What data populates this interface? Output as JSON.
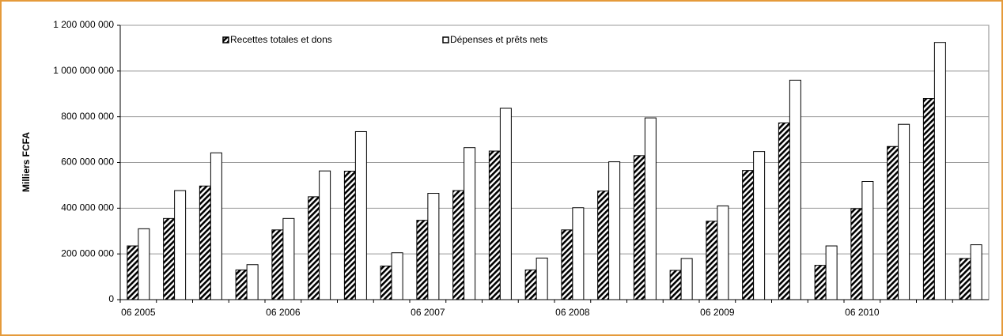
{
  "chart_data": {
    "type": "bar",
    "y_label": "Milliers FCFA",
    "categories": [
      "06 2005",
      null,
      null,
      null,
      "06 2006",
      null,
      null,
      null,
      "06 2007",
      null,
      null,
      null,
      "06 2008",
      null,
      null,
      null,
      "06 2009",
      null,
      null,
      null,
      "06 2010",
      null,
      null,
      null
    ],
    "series": [
      {
        "name": "Recettes totales et dons",
        "color": "#000000",
        "pattern": "hatch",
        "values": [
          235000000,
          355000000,
          497000000,
          130000000,
          305000000,
          450000000,
          562000000,
          147000000,
          347000000,
          477000000,
          650000000,
          130000000,
          305000000,
          475000000,
          630000000,
          128000000,
          343000000,
          565000000,
          773000000,
          150000000,
          398000000,
          670000000,
          880000000,
          180000000
        ]
      },
      {
        "name": "Dépenses et prêts nets",
        "color": "#ffffff",
        "values": [
          310000000,
          477000000,
          642000000,
          153000000,
          355000000,
          563000000,
          735000000,
          205000000,
          465000000,
          665000000,
          837000000,
          182000000,
          402000000,
          603000000,
          795000000,
          180000000,
          410000000,
          648000000,
          960000000,
          235000000,
          517000000,
          767000000,
          1125000000,
          240000000
        ]
      }
    ],
    "ylim": [
      0,
      1200000000
    ],
    "yticks": [
      0,
      {
        "value": 200000000,
        "label": "200 000 000"
      },
      {
        "value": 400000000,
        "label": "400 000 000"
      },
      {
        "value": 600000000,
        "label": "600 000 000"
      },
      {
        "value": 800000000,
        "label": "800 000 000"
      },
      {
        "value": 1000000000,
        "label": "1 000 000 000"
      },
      {
        "value": 1200000000,
        "label": "1 200 000 000"
      }
    ],
    "grid": true
  }
}
